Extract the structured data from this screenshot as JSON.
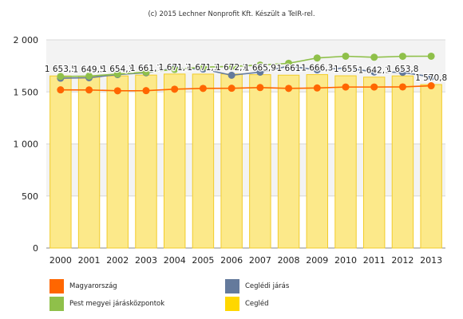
{
  "credit": "(c) 2015 Lechner Nonprofit Kft. Készült a TeIR-rel.",
  "colors": {
    "magyarorszag": "#ff6600",
    "pest": "#8fc04a",
    "ceglediJaras": "#647a9c",
    "cegled": "#ffd700",
    "barFill": "#fce98a",
    "barStroke": "#f2cc2a"
  },
  "chart_data": {
    "type": "bar+line",
    "categories": [
      "2000",
      "2001",
      "2002",
      "2003",
      "2004",
      "2005",
      "2006",
      "2007",
      "2008",
      "2009",
      "2010",
      "2011",
      "2012",
      "2013"
    ],
    "ylim": [
      0,
      2000
    ],
    "yticks": [
      0,
      500,
      1000,
      1500,
      2000
    ],
    "ytick_labels": [
      "0",
      "500",
      "1 000",
      "1 500",
      "2 000"
    ],
    "bar_series": {
      "name": "Cegléd",
      "values": [
        1653.5,
        1649.5,
        1654.1,
        1661.7,
        1671.7,
        1671.1,
        1672.1,
        1665.9,
        1661,
        1666.3,
        1655,
        1642.1,
        1653.8,
        1570.8
      ],
      "labels": [
        "1 653,5",
        "1 649,5",
        "1 654,1",
        "1 661,7",
        "1 671,7",
        "1 671,1",
        "1 672,1",
        "1 665,9",
        "1 661",
        "1 666,3",
        "1 655",
        "1 642,1",
        "1 653,8",
        "1 570,8"
      ]
    },
    "line_series": [
      {
        "name": "Magyarország",
        "colorKey": "magyarorszag",
        "values": [
          1520,
          1519,
          1511,
          1512,
          1526,
          1534,
          1535,
          1542,
          1534,
          1538,
          1547,
          1547,
          1548,
          1559
        ]
      },
      {
        "name": "Ceglédi járás",
        "colorKey": "ceglediJaras",
        "values": [
          1632,
          1636,
          1667,
          1684,
          1727,
          1720,
          1660,
          1690,
          1748,
          1712,
          1730,
          1692,
          1688,
          1645
        ]
      },
      {
        "name": "Pest megyei járásközpontok",
        "colorKey": "pest",
        "values": [
          1648,
          1652,
          1672,
          1690,
          1716,
          1738,
          1745,
          1758,
          1775,
          1826,
          1843,
          1833,
          1842,
          1843
        ]
      }
    ],
    "legend": [
      {
        "name": "Magyarország",
        "colorKey": "magyarorszag"
      },
      {
        "name": "Ceglédi járás",
        "colorKey": "ceglediJaras"
      },
      {
        "name": "Pest megyei járásközpontok",
        "colorKey": "pest"
      },
      {
        "name": "Cegléd",
        "colorKey": "cegled"
      }
    ]
  }
}
